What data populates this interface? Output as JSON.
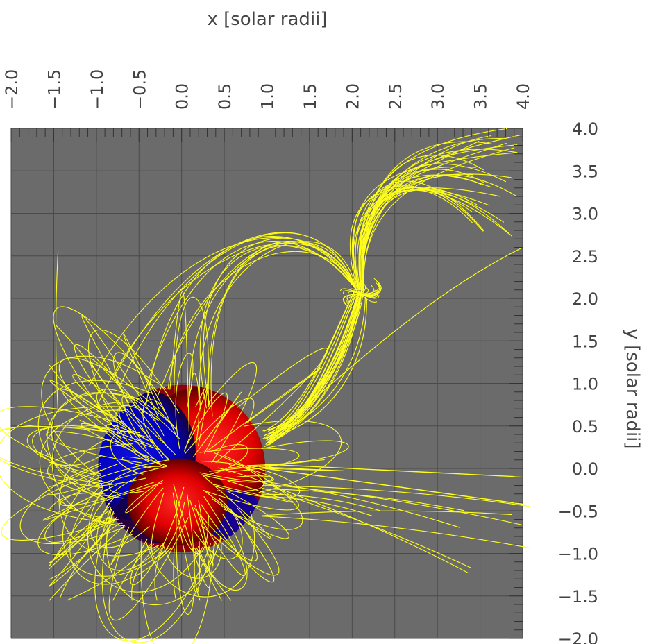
{
  "chart_data": {
    "type": "scatter",
    "title": "",
    "xlabel": "x [solar radii]",
    "ylabel": "y [solar radii]",
    "xlim": [
      -2.0,
      4.0
    ],
    "ylim": [
      -2.0,
      4.0
    ],
    "x_ticks": [
      "-2.0",
      "-1.5",
      "-1.0",
      "-0.5",
      "0.0",
      "0.5",
      "1.0",
      "1.5",
      "2.0",
      "2.5",
      "3.0",
      "3.5",
      "4.0"
    ],
    "y_ticks": [
      "4.0",
      "3.5",
      "3.0",
      "2.5",
      "2.0",
      "1.5",
      "1.0",
      "0.5",
      "0.0",
      "-0.5",
      "-1.0",
      "-1.5",
      "-2.0"
    ],
    "x_axis_position": "top",
    "y_axis_position": "right",
    "grid": true,
    "sun": {
      "center": [
        0.0,
        0.0
      ],
      "radius": 1.0
    },
    "null_point": [
      2.1,
      2.05
    ],
    "colors": {
      "background": "#6b6b6b",
      "grid": "#4a4a4a",
      "field_lines": "#ffff1a",
      "positive_polarity": "#ff0000",
      "negative_polarity": "#0000cc"
    }
  }
}
